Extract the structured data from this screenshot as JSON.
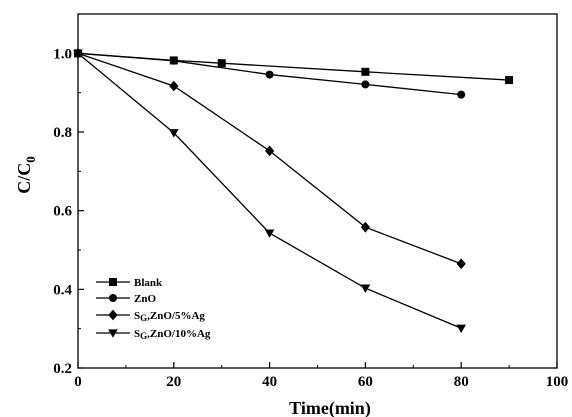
{
  "chart_data": {
    "type": "line",
    "xlabel": "Time(min)",
    "ylabel_main": "C/C",
    "ylabel_sub": "0",
    "xlim": [
      0,
      100
    ],
    "ylim": [
      0.2,
      1.1
    ],
    "xticks": [
      0,
      20,
      40,
      60,
      80,
      100
    ],
    "yticks": [
      0.2,
      0.4,
      0.6,
      0.8,
      1.0
    ],
    "ytick_labels": [
      "0.2",
      "0.4",
      "0.6",
      "0.8",
      "1.0"
    ],
    "grid": false,
    "legend_position": "bottom-left",
    "series": [
      {
        "name": "Blank",
        "marker": "square",
        "x": [
          0,
          20,
          30,
          60,
          90
        ],
        "y": [
          1.0,
          0.982,
          0.975,
          0.953,
          0.932
        ]
      },
      {
        "name": "ZnO",
        "marker": "circle",
        "x": [
          0,
          20,
          40,
          60,
          80
        ],
        "y": [
          1.0,
          0.981,
          0.946,
          0.921,
          0.895
        ]
      },
      {
        "name": "SG,ZnO/5%Ag",
        "legend_prefix": "S",
        "legend_sub": "G",
        "legend_rest": ",ZnO/5%Ag",
        "marker": "diamond",
        "x": [
          0,
          20,
          40,
          60,
          80
        ],
        "y": [
          1.0,
          0.917,
          0.752,
          0.558,
          0.465
        ]
      },
      {
        "name": "SG,ZnO/10%Ag",
        "legend_prefix": "S",
        "legend_sub": "G",
        "legend_rest": ",ZnO/10%Ag",
        "marker": "triangle-down",
        "x": [
          0,
          20,
          40,
          60,
          80
        ],
        "y": [
          1.0,
          0.798,
          0.543,
          0.403,
          0.301
        ]
      }
    ]
  }
}
